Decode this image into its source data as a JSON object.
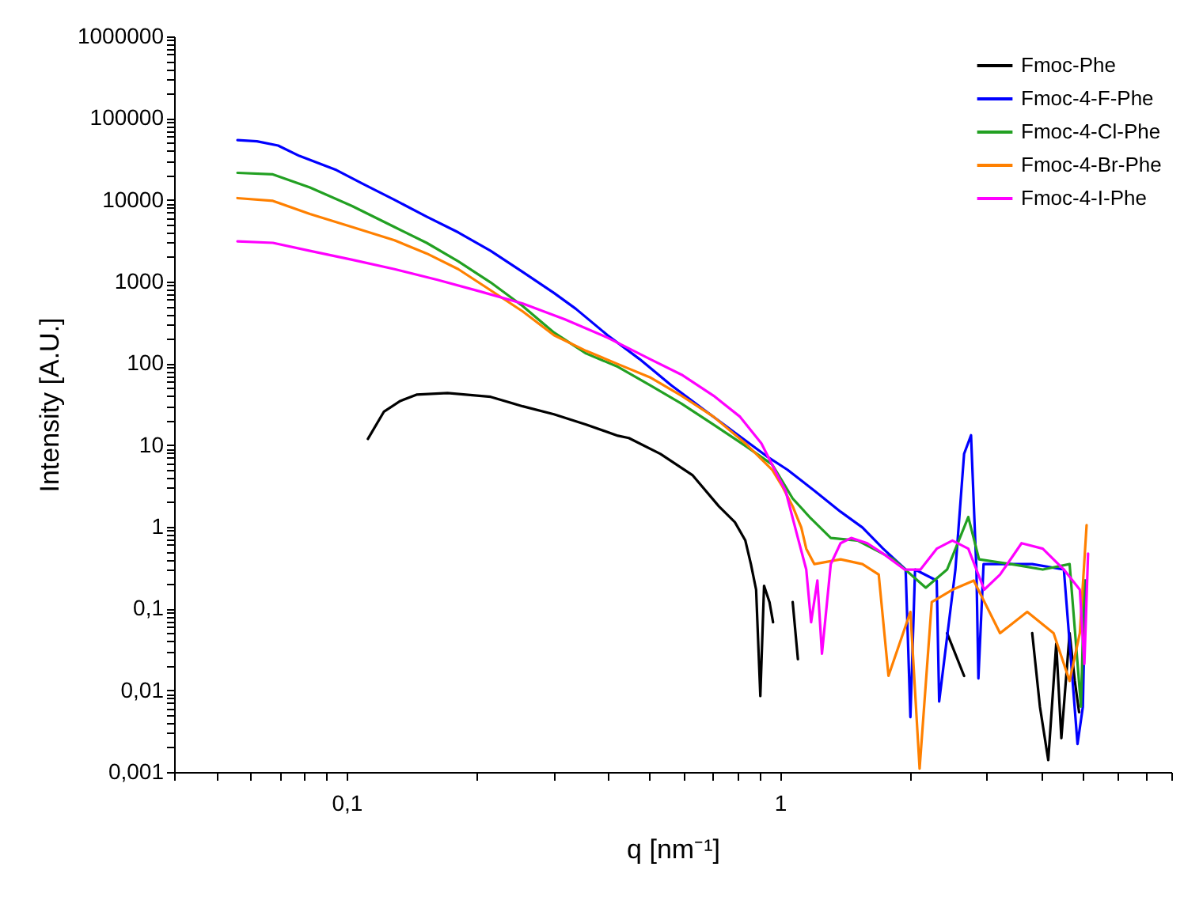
{
  "chart_data": {
    "type": "line",
    "xlabel": "q [nm⁻¹]",
    "ylabel": "Intensity [A.U.]",
    "log": "xy",
    "grid": false,
    "legend": "top right",
    "line_style": "solid",
    "marker": "none",
    "xlim": [
      0.04,
      8
    ],
    "ylim": [
      0.001,
      1000000
    ],
    "xticks": [
      {
        "value": 0.04,
        "label": null
      },
      {
        "value": 0.05,
        "label": null
      },
      {
        "value": 0.06,
        "label": null
      },
      {
        "value": 0.07,
        "label": null
      },
      {
        "value": 0.08,
        "label": null
      },
      {
        "value": 0.09,
        "label": null
      },
      {
        "value": 0.1,
        "label": "0,1"
      },
      {
        "value": 0.2,
        "label": null
      },
      {
        "value": 0.3,
        "label": null
      },
      {
        "value": 0.4,
        "label": null
      },
      {
        "value": 0.5,
        "label": null
      },
      {
        "value": 0.6,
        "label": null
      },
      {
        "value": 0.7,
        "label": null
      },
      {
        "value": 0.8,
        "label": null
      },
      {
        "value": 0.9,
        "label": null
      },
      1,
      {
        "value": 2,
        "label": null
      },
      {
        "value": 3,
        "label": null
      },
      {
        "value": 4,
        "label": null
      },
      {
        "value": 5,
        "label": null
      },
      {
        "value": 6,
        "label": null
      },
      {
        "value": 7,
        "label": null
      },
      {
        "value": 8,
        "label": null
      }
    ],
    "yticks": [
      {
        "value": 0.001,
        "label": "0,001"
      },
      {
        "value": 0.002,
        "label": null
      },
      {
        "value": 0.003,
        "label": null
      },
      {
        "value": 0.004,
        "label": null
      },
      {
        "value": 0.005,
        "label": null
      },
      {
        "value": 0.006,
        "label": null
      },
      {
        "value": 0.007,
        "label": null
      },
      {
        "value": 0.008,
        "label": null
      },
      {
        "value": 0.009,
        "label": null
      },
      {
        "value": 0.01,
        "label": "0,01"
      },
      {
        "value": 0.02,
        "label": null
      },
      {
        "value": 0.03,
        "label": null
      },
      {
        "value": 0.04,
        "label": null
      },
      {
        "value": 0.05,
        "label": null
      },
      {
        "value": 0.06,
        "label": null
      },
      {
        "value": 0.07,
        "label": null
      },
      {
        "value": 0.08,
        "label": null
      },
      {
        "value": 0.09,
        "label": null
      },
      {
        "value": 0.1,
        "label": "0,1"
      },
      {
        "value": 0.2,
        "label": null
      },
      {
        "value": 0.3,
        "label": null
      },
      {
        "value": 0.4,
        "label": null
      },
      {
        "value": 0.5,
        "label": null
      },
      {
        "value": 0.6,
        "label": null
      },
      {
        "value": 0.7,
        "label": null
      },
      {
        "value": 0.8,
        "label": null
      },
      {
        "value": 0.9,
        "label": null
      },
      1,
      {
        "value": 2,
        "label": null
      },
      {
        "value": 3,
        "label": null
      },
      {
        "value": 4,
        "label": null
      },
      {
        "value": 5,
        "label": null
      },
      {
        "value": 6,
        "label": null
      },
      {
        "value": 7,
        "label": null
      },
      {
        "value": 8,
        "label": null
      },
      {
        "value": 9,
        "label": null
      },
      10,
      {
        "value": 20,
        "label": null
      },
      {
        "value": 30,
        "label": null
      },
      {
        "value": 40,
        "label": null
      },
      {
        "value": 50,
        "label": null
      },
      {
        "value": 60,
        "label": null
      },
      {
        "value": 70,
        "label": null
      },
      {
        "value": 80,
        "label": null
      },
      {
        "value": 90,
        "label": null
      },
      100,
      {
        "value": 200,
        "label": null
      },
      {
        "value": 300,
        "label": null
      },
      {
        "value": 400,
        "label": null
      },
      {
        "value": 500,
        "label": null
      },
      {
        "value": 600,
        "label": null
      },
      {
        "value": 700,
        "label": null
      },
      {
        "value": 800,
        "label": null
      },
      {
        "value": 900,
        "label": null
      },
      1000,
      {
        "value": 2000,
        "label": null
      },
      {
        "value": 3000,
        "label": null
      },
      {
        "value": 4000,
        "label": null
      },
      {
        "value": 5000,
        "label": null
      },
      {
        "value": 6000,
        "label": null
      },
      {
        "value": 7000,
        "label": null
      },
      {
        "value": 8000,
        "label": null
      },
      {
        "value": 9000,
        "label": null
      },
      10000,
      {
        "value": 20000,
        "label": null
      },
      {
        "value": 30000,
        "label": null
      },
      {
        "value": 40000,
        "label": null
      },
      {
        "value": 50000,
        "label": null
      },
      {
        "value": 60000,
        "label": null
      },
      {
        "value": 70000,
        "label": null
      },
      {
        "value": 80000,
        "label": null
      },
      {
        "value": 90000,
        "label": null
      },
      100000,
      {
        "value": 200000,
        "label": null
      },
      {
        "value": 300000,
        "label": null
      },
      {
        "value": 400000,
        "label": null
      },
      {
        "value": 500000,
        "label": null
      },
      {
        "value": 600000,
        "label": null
      },
      {
        "value": 700000,
        "label": null
      },
      {
        "value": 800000,
        "label": null
      },
      {
        "value": 900000,
        "label": null
      },
      1000000
    ],
    "series": [
      {
        "name": "Fmoc-Phe",
        "color": "#000000",
        "x": [
          0.112,
          0.122,
          0.133,
          0.145,
          0.171,
          0.215,
          0.255,
          0.301,
          0.357,
          0.423,
          0.448,
          0.53,
          0.628,
          0.723,
          0.787,
          0.832,
          0.857,
          0.881,
          0.901,
          0.919,
          0.946,
          0.964,
          1.0,
          1.07,
          1.1,
          1.5,
          2.43,
          2.66,
          3.0,
          3.82,
          3.98,
          4.16,
          4.34,
          4.46,
          4.66,
          4.79,
          4.9
        ],
        "values": [
          11.9,
          25.7,
          34.6,
          41.4,
          43.3,
          38.9,
          29.8,
          23.8,
          17.8,
          13,
          12.2,
          7.8,
          4.3,
          1.78,
          1.14,
          0.68,
          0.35,
          0.17,
          0.0085,
          0.19,
          0.12,
          0.068,
          null,
          0.12,
          0.024,
          null,
          0.05,
          0.015,
          null,
          0.05,
          0.0063,
          0.0014,
          0.037,
          0.0026,
          0.05,
          0.013,
          0.0054
        ]
      },
      {
        "name": "Fmoc-4-F-Phe",
        "color": "#0000ff",
        "x": [
          0.056,
          0.0621,
          0.0695,
          0.0778,
          0.0948,
          0.109,
          0.129,
          0.153,
          0.181,
          0.215,
          0.255,
          0.301,
          0.338,
          0.4,
          0.474,
          0.561,
          0.664,
          0.787,
          0.932,
          1.04,
          1.2,
          1.38,
          1.55,
          1.73,
          1.95,
          2.0,
          2.05,
          2.3,
          2.33,
          2.54,
          2.66,
          2.76,
          2.84,
          2.87,
          2.95,
          3.22,
          3.82,
          4.52,
          4.86,
          5.0,
          5.07
        ],
        "values": [
          53800,
          52100,
          46200,
          34500,
          23100,
          15700,
          10000,
          6240,
          4000,
          2380,
          1310,
          726,
          465,
          221,
          113,
          54,
          27.7,
          14.2,
          7.3,
          5.0,
          2.77,
          1.53,
          0.98,
          0.54,
          0.3,
          0.0047,
          0.3,
          0.22,
          0.0073,
          0.3,
          7.8,
          13.2,
          0.3,
          0.014,
          0.35,
          0.35,
          0.35,
          0.3,
          0.0022,
          0.0063,
          0.22
        ]
      },
      {
        "name": "Fmoc-4-Cl-Phe",
        "color": "#22a022",
        "x": [
          0.056,
          0.0676,
          0.0823,
          0.103,
          0.129,
          0.153,
          0.181,
          0.215,
          0.255,
          0.301,
          0.357,
          0.423,
          0.501,
          0.593,
          0.703,
          0.832,
          0.959,
          1.01,
          1.07,
          1.17,
          1.31,
          1.51,
          1.83,
          2.17,
          2.43,
          2.72,
          2.88,
          3.41,
          4.04,
          4.66,
          4.95,
          5.04
        ],
        "values": [
          21400,
          20500,
          14200,
          8400,
          4650,
          2980,
          1770,
          977,
          501,
          238,
          132,
          90.6,
          54,
          32.1,
          17.8,
          9.8,
          5.8,
          3.7,
          2.22,
          1.32,
          0.73,
          0.68,
          0.4,
          0.18,
          0.3,
          1.32,
          0.4,
          0.35,
          0.3,
          0.35,
          0.0063,
          0.22
        ]
      },
      {
        "name": "Fmoc-4-Br-Phe",
        "color": "#ff8000",
        "x": [
          0.056,
          0.0676,
          0.0823,
          0.103,
          0.129,
          0.153,
          0.181,
          0.215,
          0.255,
          0.301,
          0.357,
          0.423,
          0.501,
          0.593,
          0.703,
          0.832,
          0.959,
          1.01,
          1.07,
          1.12,
          1.15,
          1.2,
          1.38,
          1.55,
          1.69,
          1.78,
          2.0,
          2.1,
          2.24,
          2.5,
          2.8,
          3.22,
          3.72,
          4.28,
          4.66,
          4.92,
          5.1
        ],
        "values": [
          10500,
          9730,
          6730,
          4650,
          3200,
          2210,
          1420,
          783,
          431,
          221,
          142,
          97.7,
          67.6,
          40.1,
          22.2,
          10.5,
          5.0,
          3.2,
          1.78,
          0.98,
          0.54,
          0.35,
          0.4,
          0.35,
          0.26,
          0.015,
          0.091,
          0.0011,
          0.12,
          0.17,
          0.22,
          0.05,
          0.091,
          0.05,
          0.013,
          0.05,
          1.05
        ]
      },
      {
        "name": "Fmoc-4-I-Phe",
        "color": "#ff00ff",
        "x": [
          0.056,
          0.0676,
          0.0823,
          0.103,
          0.129,
          0.162,
          0.203,
          0.255,
          0.319,
          0.4,
          0.501,
          0.593,
          0.703,
          0.809,
          0.906,
          0.986,
          1.03,
          1.1,
          1.15,
          1.18,
          1.22,
          1.25,
          1.31,
          1.38,
          1.46,
          1.59,
          1.73,
          1.94,
          2.11,
          2.3,
          2.5,
          2.72,
          2.96,
          3.22,
          3.61,
          4.04,
          4.52,
          4.92,
          5.04,
          5.14
        ],
        "values": [
          3110,
          2980,
          2380,
          1850,
          1420,
          1050,
          759,
          538,
          345,
          206,
          113,
          72.6,
          40.1,
          22.2,
          10.5,
          4.3,
          2.77,
          0.73,
          0.3,
          0.068,
          0.22,
          0.028,
          0.35,
          0.63,
          0.73,
          0.63,
          0.47,
          0.3,
          0.3,
          0.54,
          0.68,
          0.54,
          0.17,
          0.26,
          0.63,
          0.54,
          0.3,
          0.17,
          0.021,
          0.47
        ]
      }
    ]
  }
}
